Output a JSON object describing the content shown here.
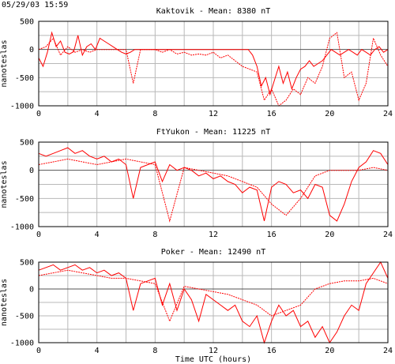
{
  "timestamp": "05/29/03 15:59",
  "xlabel": "Time UTC (hours)",
  "chart_data": [
    {
      "type": "line",
      "title": "Kaktovik - Mean: 8380 nT",
      "ylabel": "nanoteslas",
      "xlim": [
        0,
        24
      ],
      "ylim": [
        -1000,
        500
      ],
      "x_ticks": [
        0,
        4,
        8,
        12,
        16,
        20,
        24
      ],
      "y_ticks": [
        500,
        0,
        -500,
        -1000
      ],
      "grid": true,
      "series_color": "#ff0000",
      "series": [
        {
          "x": [
            0,
            0.3,
            0.6,
            0.9,
            1.2,
            1.5,
            1.8,
            2.1,
            2.4,
            2.7,
            3.0,
            3.3,
            3.6,
            3.9,
            4.2,
            4.5,
            4.8,
            5.1,
            5.4,
            5.7,
            6.0,
            6.3,
            6.6,
            6.9,
            7.2,
            7.5,
            7.8,
            8.1,
            8.4,
            8.7,
            9.0,
            9.3,
            9.6,
            9.9,
            10.2,
            10.5,
            10.8,
            11.1,
            11.4,
            11.7,
            12.0,
            12.3,
            12.6,
            12.9,
            13.2,
            13.5,
            13.8,
            14.1,
            14.4,
            14.7,
            15.0,
            15.3,
            15.6,
            15.9,
            16.2,
            16.5,
            16.8,
            17.1,
            17.4,
            17.7,
            18.0,
            18.3,
            18.6,
            18.9,
            19.2,
            19.5,
            19.8,
            20.1,
            20.4,
            20.7,
            21.0,
            21.3,
            21.6,
            21.9,
            22.2,
            22.5,
            22.8,
            23.1,
            23.4,
            23.7,
            24.0
          ],
          "y": [
            -150,
            -300,
            -50,
            300,
            50,
            150,
            -50,
            -80,
            -40,
            250,
            -100,
            50,
            100,
            0,
            200,
            150,
            100,
            50,
            0,
            -50,
            -80,
            -50,
            0,
            0,
            0,
            0,
            0,
            0,
            0,
            0,
            0,
            0,
            0,
            0,
            0,
            0,
            0,
            0,
            0,
            0,
            0,
            0,
            0,
            0,
            0,
            0,
            0,
            0,
            0,
            -100,
            -300,
            -650,
            -500,
            -800,
            -550,
            -300,
            -600,
            -400,
            -700,
            -500,
            -350,
            -300,
            -200,
            -300,
            -250,
            -200,
            -100,
            0,
            -50,
            -100,
            -50,
            0,
            -50,
            -100,
            0,
            -50,
            -100,
            0,
            50,
            -50,
            0
          ]
        },
        {
          "x": [
            0,
            0.5,
            1.0,
            1.5,
            2.0,
            2.5,
            3.0,
            3.5,
            4.0,
            4.5,
            5.0,
            5.5,
            6.0,
            6.5,
            7.0,
            7.5,
            8.0,
            8.5,
            9.0,
            9.5,
            10.0,
            10.5,
            11.0,
            11.5,
            12.0,
            12.5,
            13.0,
            13.5,
            14.0,
            14.5,
            15.0,
            15.5,
            16.0,
            16.5,
            17.0,
            17.5,
            18.0,
            18.5,
            19.0,
            19.5,
            20.0,
            20.5,
            21.0,
            21.5,
            22.0,
            22.5,
            23.0,
            23.5,
            24.0
          ],
          "y": [
            0,
            50,
            200,
            -100,
            50,
            -50,
            0,
            -50,
            0,
            0,
            0,
            0,
            0,
            -600,
            0,
            0,
            0,
            -50,
            0,
            -80,
            -50,
            -100,
            -80,
            -100,
            -50,
            -150,
            -100,
            -200,
            -300,
            -350,
            -400,
            -900,
            -700,
            -1000,
            -900,
            -700,
            -800,
            -500,
            -600,
            -300,
            200,
            300,
            -500,
            -400,
            -900,
            -600,
            200,
            -100,
            -300
          ]
        }
      ]
    },
    {
      "type": "line",
      "title": "FtYukon - Mean: 11225 nT",
      "ylabel": "nanoteslas",
      "xlim": [
        0,
        24
      ],
      "ylim": [
        -1000,
        500
      ],
      "x_ticks": [
        0,
        4,
        8,
        12,
        16,
        20,
        24
      ],
      "y_ticks": [
        500,
        0,
        -500,
        -1000
      ],
      "grid": true,
      "series_color": "#ff0000",
      "series": [
        {
          "x": [
            0,
            0.5,
            1.0,
            1.5,
            2.0,
            2.5,
            3.0,
            3.5,
            4.0,
            4.5,
            5.0,
            5.5,
            6.0,
            6.5,
            7.0,
            7.5,
            8.0,
            8.5,
            9.0,
            9.5,
            10.0,
            10.5,
            11.0,
            11.5,
            12.0,
            12.5,
            13.0,
            13.5,
            14.0,
            14.5,
            15.0,
            15.5,
            16.0,
            16.5,
            17.0,
            17.5,
            18.0,
            18.5,
            19.0,
            19.5,
            20.0,
            20.5,
            21.0,
            21.5,
            22.0,
            22.5,
            23.0,
            23.5,
            24.0
          ],
          "y": [
            300,
            250,
            300,
            350,
            400,
            300,
            350,
            250,
            200,
            250,
            150,
            200,
            100,
            -500,
            50,
            100,
            150,
            -200,
            100,
            0,
            50,
            0,
            -100,
            -50,
            -150,
            -100,
            -200,
            -250,
            -400,
            -300,
            -350,
            -900,
            -300,
            -200,
            -250,
            -400,
            -350,
            -500,
            -250,
            -300,
            -800,
            -900,
            -600,
            -200,
            50,
            150,
            350,
            300,
            100
          ]
        },
        {
          "x": [
            0,
            1,
            2,
            3,
            4,
            5,
            6,
            7,
            8,
            9,
            10,
            11,
            12,
            13,
            14,
            15,
            16,
            17,
            18,
            19,
            20,
            21,
            22,
            23,
            24
          ],
          "y": [
            100,
            150,
            200,
            150,
            100,
            150,
            200,
            150,
            100,
            -900,
            50,
            0,
            -50,
            -100,
            -200,
            -300,
            -600,
            -800,
            -500,
            -100,
            0,
            0,
            0,
            50,
            0
          ]
        }
      ]
    },
    {
      "type": "line",
      "title": "Poker - Mean: 12490 nT",
      "ylabel": "nanoteslas",
      "xlim": [
        0,
        24
      ],
      "ylim": [
        -1000,
        500
      ],
      "x_ticks": [
        0,
        4,
        8,
        12,
        16,
        20,
        24
      ],
      "y_ticks": [
        500,
        0,
        -500,
        -1000
      ],
      "grid": true,
      "series_color": "#ff0000",
      "series": [
        {
          "x": [
            0,
            0.5,
            1.0,
            1.5,
            2.0,
            2.5,
            3.0,
            3.5,
            4.0,
            4.5,
            5.0,
            5.5,
            6.0,
            6.5,
            7.0,
            7.5,
            8.0,
            8.5,
            9.0,
            9.5,
            10.0,
            10.5,
            11.0,
            11.5,
            12.0,
            12.5,
            13.0,
            13.5,
            14.0,
            14.5,
            15.0,
            15.5,
            16.0,
            16.5,
            17.0,
            17.5,
            18.0,
            18.5,
            19.0,
            19.5,
            20.0,
            20.5,
            21.0,
            21.5,
            22.0,
            22.5,
            23.0,
            23.5,
            24.0
          ],
          "y": [
            350,
            400,
            450,
            350,
            400,
            450,
            350,
            400,
            300,
            350,
            250,
            300,
            200,
            -400,
            100,
            150,
            200,
            -300,
            100,
            -400,
            0,
            -200,
            -600,
            -100,
            -200,
            -300,
            -400,
            -300,
            -600,
            -700,
            -500,
            -1000,
            -600,
            -300,
            -500,
            -400,
            -700,
            -600,
            -900,
            -700,
            -1000,
            -800,
            -500,
            -300,
            -400,
            100,
            300,
            500,
            200
          ]
        },
        {
          "x": [
            0,
            1,
            2,
            3,
            4,
            5,
            6,
            7,
            8,
            9,
            10,
            11,
            12,
            13,
            14,
            15,
            16,
            17,
            18,
            19,
            20,
            21,
            22,
            23,
            24
          ],
          "y": [
            250,
            300,
            350,
            300,
            250,
            200,
            200,
            150,
            100,
            -600,
            50,
            0,
            -50,
            -100,
            -200,
            -300,
            -500,
            -400,
            -300,
            0,
            100,
            150,
            150,
            200,
            100
          ]
        }
      ]
    }
  ]
}
